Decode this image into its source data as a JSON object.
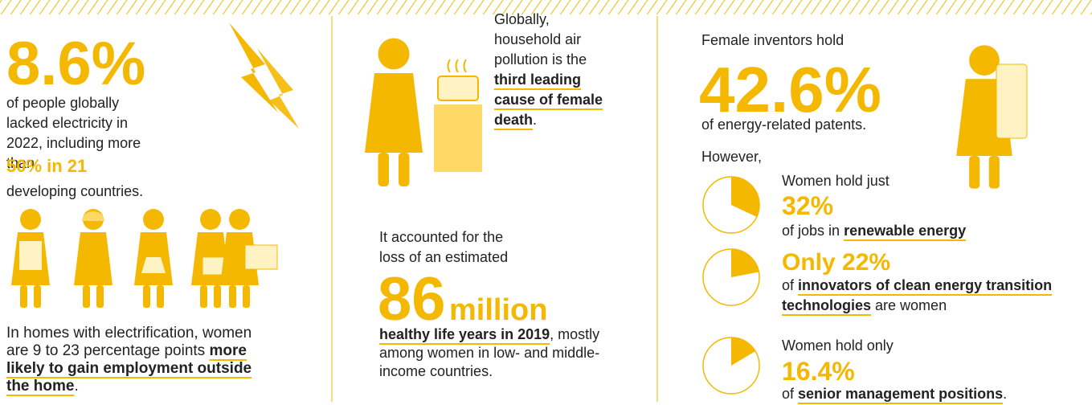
{
  "left": {
    "headline": "8.6%",
    "text1": "of people globally lacked electricity in 2022, including more than",
    "highlight": "50% in 21",
    "text2": "developing countries.",
    "employment_before": "In homes with electrification, women are 9 to 23 percentage points",
    "employment_link": "more likely to gain employment outside the home",
    "employment_after": "."
  },
  "middle": {
    "intro": "Globally, household air pollution is the",
    "link": "third leading cause of female death",
    "after": ".",
    "lead": "It accounted for the loss of an estimated",
    "number": "86",
    "unit": "million",
    "link2": "healthy life years in 2019",
    "after2": ", mostly among women in low- and middle-income countries."
  },
  "right": {
    "lead": "Female inventors hold",
    "headline": "42.6%",
    "text": "of energy-related patents.",
    "however": "However,",
    "stats": [
      {
        "before": "Women hold just",
        "value": 32,
        "label": "32%",
        "after": "of jobs in",
        "link": "renewable energy"
      },
      {
        "prefix": "Only",
        "value": 22,
        "label": "22%",
        "after": "of",
        "link": "innovators of clean energy transition technologies",
        "tail": "are women"
      },
      {
        "before": "Women hold only",
        "value": 16.4,
        "label": "16.4%",
        "after": "of",
        "link": "senior management positions",
        "tail": "."
      }
    ]
  }
}
